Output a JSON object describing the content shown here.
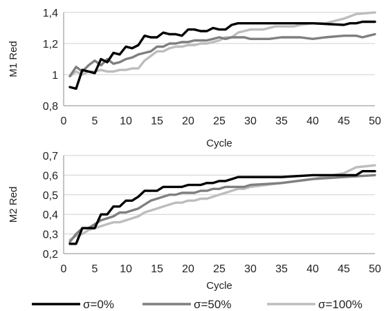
{
  "legend": [
    {
      "label": "σ=0%",
      "color": "#000000"
    },
    {
      "label": "σ=50%",
      "color": "#7f7f7f"
    },
    {
      "label": "σ=100%",
      "color": "#bdbdbd"
    }
  ],
  "chart_data": [
    {
      "type": "line",
      "title": "",
      "xlabel": "Cycle",
      "ylabel": "M1 Red",
      "xlim": [
        0,
        50
      ],
      "ylim": [
        0.8,
        1.4
      ],
      "xticks": [
        "0",
        "5",
        "10",
        "15",
        "20",
        "25",
        "30",
        "35",
        "40",
        "45",
        "50"
      ],
      "yticks": [
        "0,8",
        "1",
        "1,2",
        "1,4"
      ],
      "ytick_values": [
        0.8,
        1.0,
        1.2,
        1.4
      ],
      "grid": true,
      "series": [
        {
          "name": "σ=0%",
          "color": "#000000",
          "x": [
            1,
            2,
            3,
            4,
            5,
            6,
            7,
            8,
            9,
            10,
            11,
            12,
            13,
            14,
            15,
            16,
            17,
            18,
            19,
            20,
            21,
            22,
            23,
            24,
            25,
            26,
            27,
            28,
            29,
            30,
            35,
            40,
            45,
            46,
            47,
            48,
            49,
            50
          ],
          "y": [
            0.92,
            0.91,
            1.03,
            1.02,
            1.01,
            1.1,
            1.08,
            1.14,
            1.13,
            1.18,
            1.17,
            1.19,
            1.25,
            1.24,
            1.24,
            1.27,
            1.26,
            1.26,
            1.25,
            1.29,
            1.29,
            1.28,
            1.28,
            1.3,
            1.29,
            1.29,
            1.32,
            1.33,
            1.33,
            1.33,
            1.33,
            1.33,
            1.32,
            1.33,
            1.33,
            1.34,
            1.34,
            1.34
          ]
        },
        {
          "name": "σ=50%",
          "color": "#7f7f7f",
          "x": [
            1,
            2,
            3,
            4,
            5,
            6,
            7,
            8,
            9,
            10,
            11,
            12,
            13,
            14,
            15,
            16,
            17,
            18,
            19,
            20,
            21,
            22,
            23,
            24,
            25,
            26,
            27,
            28,
            29,
            30,
            33,
            35,
            38,
            40,
            42,
            45,
            47,
            48,
            49,
            50
          ],
          "y": [
            0.99,
            1.05,
            1.02,
            1.06,
            1.09,
            1.06,
            1.1,
            1.07,
            1.08,
            1.1,
            1.11,
            1.13,
            1.14,
            1.15,
            1.18,
            1.18,
            1.2,
            1.2,
            1.21,
            1.21,
            1.22,
            1.22,
            1.22,
            1.23,
            1.24,
            1.23,
            1.24,
            1.24,
            1.24,
            1.23,
            1.23,
            1.24,
            1.24,
            1.23,
            1.24,
            1.25,
            1.25,
            1.24,
            1.25,
            1.26
          ]
        },
        {
          "name": "σ=100%",
          "color": "#bdbdbd",
          "x": [
            1,
            2,
            3,
            4,
            5,
            6,
            7,
            8,
            9,
            10,
            11,
            12,
            13,
            14,
            15,
            16,
            17,
            18,
            19,
            20,
            21,
            22,
            23,
            24,
            25,
            26,
            27,
            28,
            29,
            30,
            32,
            34,
            35,
            36,
            37,
            38,
            40,
            42,
            45,
            47,
            50
          ],
          "y": [
            0.99,
            1.02,
            1.0,
            1.02,
            1.02,
            1.03,
            1.02,
            1.02,
            1.03,
            1.03,
            1.04,
            1.04,
            1.09,
            1.12,
            1.15,
            1.15,
            1.17,
            1.18,
            1.18,
            1.19,
            1.19,
            1.2,
            1.2,
            1.21,
            1.22,
            1.24,
            1.24,
            1.27,
            1.28,
            1.29,
            1.29,
            1.31,
            1.31,
            1.31,
            1.31,
            1.32,
            1.33,
            1.33,
            1.36,
            1.39,
            1.4
          ]
        }
      ]
    },
    {
      "type": "line",
      "title": "",
      "xlabel": "Cycle",
      "ylabel": "M2 Red",
      "xlim": [
        0,
        50
      ],
      "ylim": [
        0.2,
        0.7
      ],
      "xticks": [
        "0",
        "5",
        "10",
        "15",
        "20",
        "25",
        "30",
        "35",
        "40",
        "45",
        "50"
      ],
      "yticks": [
        "0,2",
        "0,3",
        "0,4",
        "0,5",
        "0,6",
        "0,7"
      ],
      "ytick_values": [
        0.2,
        0.3,
        0.4,
        0.5,
        0.6,
        0.7
      ],
      "grid": true,
      "series": [
        {
          "name": "σ=0%",
          "color": "#000000",
          "x": [
            1,
            1.5,
            2,
            3,
            4,
            5,
            6,
            7,
            8,
            9,
            10,
            11,
            12,
            13,
            14,
            15,
            16,
            17,
            18,
            19,
            20,
            21,
            22,
            23,
            24,
            25,
            26,
            27,
            28,
            29,
            30,
            35,
            40,
            45,
            47,
            48,
            50
          ],
          "y": [
            0.25,
            0.25,
            0.25,
            0.33,
            0.33,
            0.33,
            0.4,
            0.4,
            0.44,
            0.44,
            0.47,
            0.47,
            0.49,
            0.52,
            0.52,
            0.52,
            0.54,
            0.54,
            0.54,
            0.54,
            0.55,
            0.55,
            0.55,
            0.56,
            0.56,
            0.57,
            0.57,
            0.58,
            0.59,
            0.59,
            0.59,
            0.59,
            0.6,
            0.6,
            0.6,
            0.62,
            0.62
          ]
        },
        {
          "name": "σ=50%",
          "color": "#7f7f7f",
          "x": [
            1,
            2,
            3,
            4,
            5,
            6,
            7,
            8,
            9,
            10,
            11,
            12,
            13,
            14,
            15,
            16,
            17,
            18,
            19,
            20,
            21,
            22,
            23,
            24,
            25,
            26,
            27,
            28,
            29,
            30,
            35,
            40,
            45,
            50
          ],
          "y": [
            0.26,
            0.3,
            0.33,
            0.33,
            0.35,
            0.37,
            0.38,
            0.39,
            0.41,
            0.41,
            0.42,
            0.43,
            0.45,
            0.47,
            0.48,
            0.49,
            0.5,
            0.5,
            0.51,
            0.51,
            0.51,
            0.52,
            0.52,
            0.53,
            0.53,
            0.54,
            0.54,
            0.54,
            0.54,
            0.55,
            0.56,
            0.58,
            0.59,
            0.6
          ]
        },
        {
          "name": "σ=100%",
          "color": "#bdbdbd",
          "x": [
            1,
            2,
            3,
            4,
            5,
            6,
            7,
            8,
            9,
            10,
            11,
            12,
            13,
            14,
            15,
            16,
            17,
            18,
            19,
            20,
            21,
            22,
            23,
            24,
            25,
            26,
            27,
            28,
            29,
            30,
            35,
            40,
            45,
            47,
            50
          ],
          "y": [
            0.27,
            0.29,
            0.3,
            0.32,
            0.33,
            0.34,
            0.35,
            0.36,
            0.36,
            0.37,
            0.38,
            0.39,
            0.41,
            0.42,
            0.43,
            0.44,
            0.45,
            0.46,
            0.46,
            0.47,
            0.47,
            0.48,
            0.48,
            0.49,
            0.5,
            0.51,
            0.52,
            0.53,
            0.53,
            0.54,
            0.56,
            0.58,
            0.61,
            0.64,
            0.65
          ]
        }
      ]
    }
  ]
}
